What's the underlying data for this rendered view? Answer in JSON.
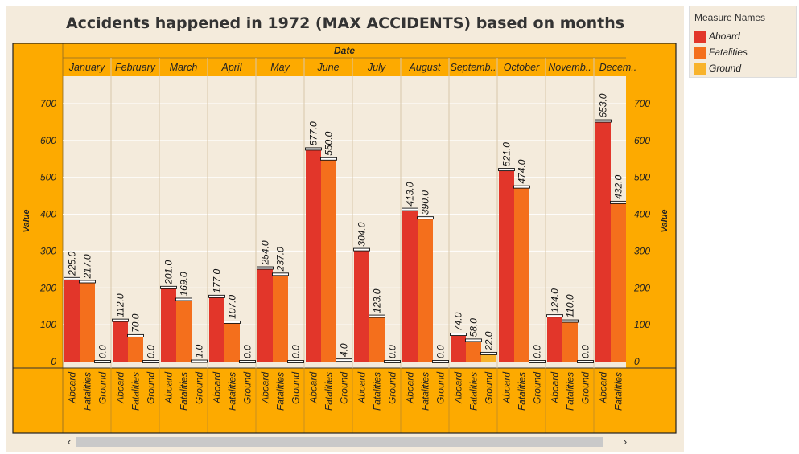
{
  "title": "Accidents happened in 1972 (MAX ACCIDENTS) based on months",
  "legend": {
    "title": "Measure Names",
    "items": [
      {
        "label": "Aboard",
        "color": "#e2362a"
      },
      {
        "label": "Fatalities",
        "color": "#f46f1c"
      },
      {
        "label": "Ground",
        "color": "#f8b32b"
      }
    ]
  },
  "scrollbar": {
    "left_glyph": "‹",
    "right_glyph": "›"
  },
  "chart_data": {
    "type": "bar",
    "column_header": "Date",
    "month_labels": [
      "January",
      "February",
      "March",
      "April",
      "May",
      "June",
      "July",
      "August",
      "Septemb..",
      "October",
      "Novemb..",
      "Decem.."
    ],
    "measure_labels": [
      "Aboard",
      "Fatalities",
      "Ground"
    ],
    "ylabel": "Value",
    "ylim": [
      0,
      780
    ],
    "yticks": [
      0,
      100,
      200,
      300,
      400,
      500,
      600,
      700
    ],
    "colors": {
      "Aboard": "#e2362a",
      "Fatalities": "#f46f1c",
      "Ground": "#f8b32b"
    },
    "groups": [
      {
        "Aboard": "225.0",
        "Fatalities": "217.0",
        "Ground": "0.0"
      },
      {
        "Aboard": "112.0",
        "Fatalities": "70.0",
        "Ground": "0.0"
      },
      {
        "Aboard": "201.0",
        "Fatalities": "169.0",
        "Ground": "1.0"
      },
      {
        "Aboard": "177.0",
        "Fatalities": "107.0",
        "Ground": "0.0"
      },
      {
        "Aboard": "254.0",
        "Fatalities": "237.0",
        "Ground": "0.0"
      },
      {
        "Aboard": "577.0",
        "Fatalities": "550.0",
        "Ground": "4.0"
      },
      {
        "Aboard": "304.0",
        "Fatalities": "123.0",
        "Ground": "0.0"
      },
      {
        "Aboard": "413.0",
        "Fatalities": "390.0",
        "Ground": "0.0"
      },
      {
        "Aboard": "74.0",
        "Fatalities": "58.0",
        "Ground": "22.0"
      },
      {
        "Aboard": "521.0",
        "Fatalities": "474.0",
        "Ground": "0.0"
      },
      {
        "Aboard": "124.0",
        "Fatalities": "110.0",
        "Ground": "0.0"
      },
      {
        "Aboard": "653.0",
        "Fatalities": "432.0"
      }
    ]
  }
}
